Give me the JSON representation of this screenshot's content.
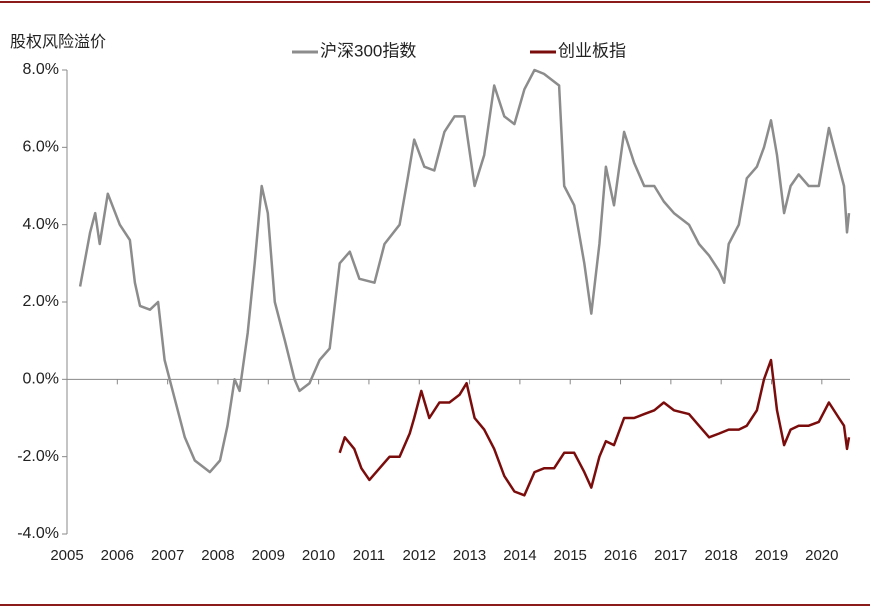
{
  "chart_data": {
    "type": "line",
    "title": "股权风险溢价",
    "xlim": [
      2005,
      2020.56
    ],
    "xticks": [
      2005,
      2006,
      2007,
      2008,
      2009,
      2010,
      2011,
      2012,
      2013,
      2014,
      2015,
      2016,
      2017,
      2018,
      2019,
      2020
    ],
    "ylim": [
      -4,
      8
    ],
    "yticks": [
      {
        "value": -4,
        "label": "-4.0%"
      },
      {
        "value": -2,
        "label": "-2.0%"
      },
      {
        "value": 0,
        "label": "0.0%"
      },
      {
        "value": 2,
        "label": "2.0%"
      },
      {
        "value": 4,
        "label": "4.0%"
      },
      {
        "value": 6,
        "label": "6.0%"
      },
      {
        "value": 8,
        "label": "8.0%"
      }
    ],
    "series": [
      {
        "name": "沪深300指数",
        "color": "#8c8c8c",
        "x": [
          2005.26,
          2005.46,
          2005.56,
          2005.65,
          2005.81,
          2006.05,
          2006.25,
          2006.35,
          2006.45,
          2006.65,
          2006.81,
          2006.94,
          2007.14,
          2007.34,
          2007.54,
          2007.74,
          2007.84,
          2008.04,
          2008.19,
          2008.33,
          2008.43,
          2008.59,
          2008.73,
          2008.87,
          2008.99,
          2009.13,
          2009.33,
          2009.52,
          2009.62,
          2009.82,
          2010.02,
          2010.22,
          2010.42,
          2010.62,
          2010.81,
          2011.11,
          2011.31,
          2011.61,
          2011.77,
          2011.9,
          2012.1,
          2012.3,
          2012.5,
          2012.7,
          2012.9,
          2013.1,
          2013.29,
          2013.49,
          2013.69,
          2013.89,
          2014.09,
          2014.29,
          2014.48,
          2014.78,
          2014.88,
          2015.08,
          2015.28,
          2015.42,
          2015.58,
          2015.71,
          2015.87,
          2016.07,
          2016.27,
          2016.47,
          2016.67,
          2016.86,
          2017.06,
          2017.36,
          2017.56,
          2017.76,
          2017.96,
          2018.06,
          2018.15,
          2018.35,
          2018.51,
          2018.71,
          2018.85,
          2018.99,
          2019.11,
          2019.25,
          2019.38,
          2019.54,
          2019.74,
          2019.94,
          2020.14,
          2020.34,
          2020.44,
          2020.5,
          2020.54
        ],
        "values": [
          2.4,
          3.8,
          4.3,
          3.5,
          4.8,
          4.0,
          3.6,
          2.5,
          1.9,
          1.8,
          2.0,
          0.5,
          -0.5,
          -1.5,
          -2.1,
          -2.3,
          -2.4,
          -2.1,
          -1.2,
          0.0,
          -0.3,
          1.2,
          3.0,
          5.0,
          4.3,
          2.0,
          1.0,
          0.0,
          -0.3,
          -0.1,
          0.5,
          0.8,
          3.0,
          3.3,
          2.6,
          2.5,
          3.5,
          4.0,
          5.2,
          6.2,
          5.5,
          5.4,
          6.4,
          6.8,
          6.8,
          5.0,
          5.8,
          7.6,
          6.8,
          6.6,
          7.5,
          8.0,
          7.9,
          7.6,
          5.0,
          4.5,
          3.0,
          1.7,
          3.5,
          5.5,
          4.5,
          6.4,
          5.6,
          5.0,
          5.0,
          4.6,
          4.3,
          4.0,
          3.5,
          3.2,
          2.8,
          2.5,
          3.5,
          4.0,
          5.2,
          5.5,
          6.0,
          6.7,
          5.8,
          4.3,
          5.0,
          5.3,
          5.0,
          5.0,
          6.5,
          5.5,
          5.0,
          3.8,
          4.3
        ]
      },
      {
        "name": "创业板指",
        "color": "#7b0c0c",
        "x": [
          2010.42,
          2010.52,
          2010.71,
          2010.85,
          2011.01,
          2011.21,
          2011.41,
          2011.61,
          2011.81,
          2011.9,
          2012.04,
          2012.2,
          2012.4,
          2012.6,
          2012.8,
          2012.94,
          2013.1,
          2013.29,
          2013.49,
          2013.69,
          2013.89,
          2014.09,
          2014.29,
          2014.48,
          2014.68,
          2014.88,
          2015.08,
          2015.28,
          2015.42,
          2015.58,
          2015.71,
          2015.87,
          2016.07,
          2016.27,
          2016.47,
          2016.67,
          2016.86,
          2017.06,
          2017.36,
          2017.56,
          2017.76,
          2017.96,
          2018.15,
          2018.35,
          2018.51,
          2018.71,
          2018.85,
          2018.99,
          2019.11,
          2019.25,
          2019.38,
          2019.54,
          2019.74,
          2019.94,
          2020.14,
          2020.34,
          2020.44,
          2020.5,
          2020.54
        ],
        "values": [
          -1.9,
          -1.5,
          -1.8,
          -2.3,
          -2.6,
          -2.3,
          -2.0,
          -2.0,
          -1.4,
          -1.0,
          -0.3,
          -1.0,
          -0.6,
          -0.6,
          -0.4,
          -0.1,
          -1.0,
          -1.3,
          -1.8,
          -2.5,
          -2.9,
          -3.0,
          -2.4,
          -2.3,
          -2.3,
          -1.9,
          -1.9,
          -2.4,
          -2.8,
          -2.0,
          -1.6,
          -1.7,
          -1.0,
          -1.0,
          -0.9,
          -0.8,
          -0.6,
          -0.8,
          -0.9,
          -1.2,
          -1.5,
          -1.4,
          -1.3,
          -1.3,
          -1.2,
          -0.8,
          0.0,
          0.5,
          -0.8,
          -1.7,
          -1.3,
          -1.2,
          -1.2,
          -1.1,
          -0.6,
          -1.0,
          -1.2,
          -1.8,
          -1.5
        ]
      }
    ]
  }
}
